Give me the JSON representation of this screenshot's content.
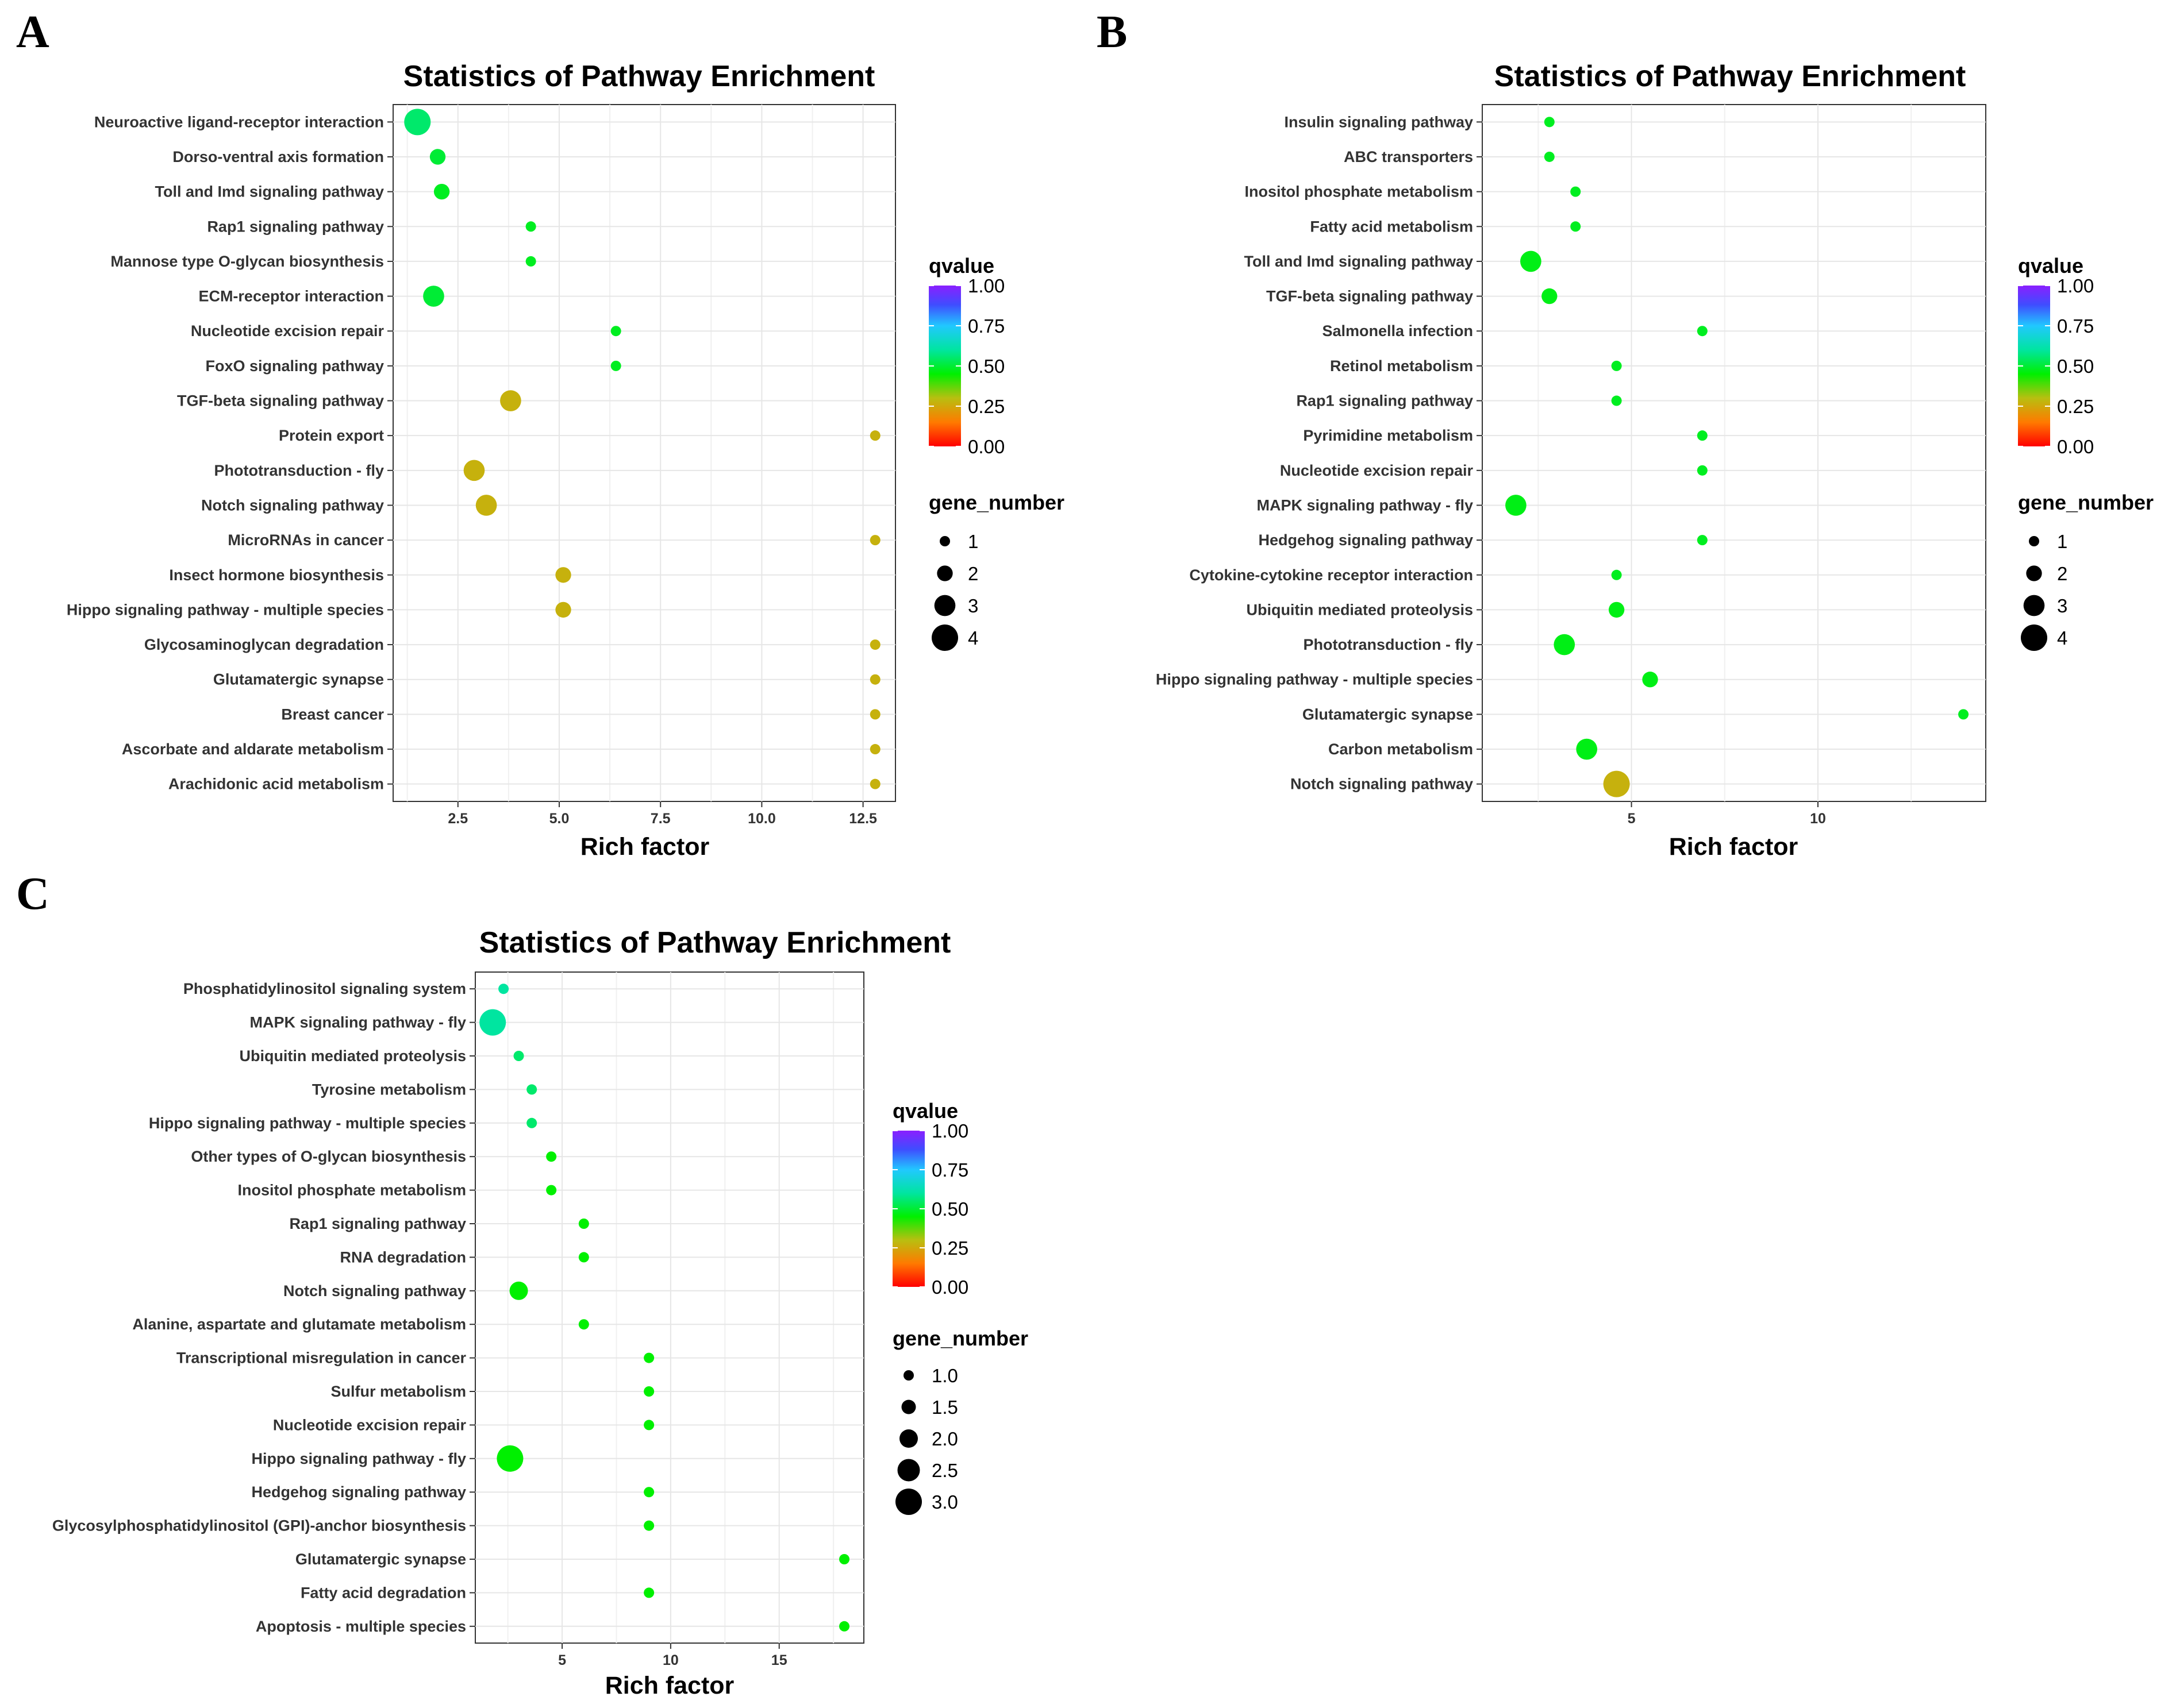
{
  "chart_data": [
    {
      "panel": "A",
      "type": "scatter",
      "title": "Statistics of Pathway Enrichment",
      "xlabel": "Rich factor",
      "ylabel": "",
      "xlim": [
        0.9,
        13.3
      ],
      "xticks": [
        2.5,
        5.0,
        7.5,
        10.0,
        12.5
      ],
      "xtick_labels": [
        "2.5",
        "5.0",
        "7.5",
        "10.0",
        "12.5"
      ],
      "grid": true,
      "color_legend": {
        "title": "qvalue",
        "labels": [
          "1.00",
          "0.75",
          "0.50",
          "0.25",
          "0.00"
        ]
      },
      "size_legend": {
        "title": "gene_number",
        "values": [
          1,
          2,
          3,
          4
        ],
        "labels": [
          "1",
          "2",
          "3",
          "4"
        ]
      },
      "points": [
        {
          "pathway": "Neuroactive ligand-receptor interaction",
          "rich_factor": 1.5,
          "gene_number": 4,
          "qvalue": 0.55
        },
        {
          "pathway": "Dorso-ventral axis formation",
          "rich_factor": 2.0,
          "gene_number": 2,
          "qvalue": 0.5
        },
        {
          "pathway": "Toll and Imd signaling pathway",
          "rich_factor": 2.1,
          "gene_number": 2,
          "qvalue": 0.48
        },
        {
          "pathway": "Rap1 signaling pathway",
          "rich_factor": 4.3,
          "gene_number": 1,
          "qvalue": 0.48
        },
        {
          "pathway": "Mannose type O-glycan biosynthesis",
          "rich_factor": 4.3,
          "gene_number": 1,
          "qvalue": 0.48
        },
        {
          "pathway": "ECM-receptor interaction",
          "rich_factor": 1.9,
          "gene_number": 3,
          "qvalue": 0.5
        },
        {
          "pathway": "Nucleotide excision repair",
          "rich_factor": 6.4,
          "gene_number": 1,
          "qvalue": 0.48
        },
        {
          "pathway": "FoxO signaling pathway",
          "rich_factor": 6.4,
          "gene_number": 1,
          "qvalue": 0.48
        },
        {
          "pathway": "TGF-beta signaling pathway",
          "rich_factor": 3.8,
          "gene_number": 3,
          "qvalue": 0.27
        },
        {
          "pathway": "Protein export",
          "rich_factor": 12.8,
          "gene_number": 1,
          "qvalue": 0.27
        },
        {
          "pathway": "Phototransduction - fly",
          "rich_factor": 2.9,
          "gene_number": 3,
          "qvalue": 0.27
        },
        {
          "pathway": "Notch signaling pathway",
          "rich_factor": 3.2,
          "gene_number": 3,
          "qvalue": 0.27
        },
        {
          "pathway": "MicroRNAs in cancer",
          "rich_factor": 12.8,
          "gene_number": 1,
          "qvalue": 0.27
        },
        {
          "pathway": "Insect hormone biosynthesis",
          "rich_factor": 5.1,
          "gene_number": 2,
          "qvalue": 0.27
        },
        {
          "pathway": "Hippo signaling pathway - multiple species",
          "rich_factor": 5.1,
          "gene_number": 2,
          "qvalue": 0.27
        },
        {
          "pathway": "Glycosaminoglycan degradation",
          "rich_factor": 12.8,
          "gene_number": 1,
          "qvalue": 0.27
        },
        {
          "pathway": "Glutamatergic synapse",
          "rich_factor": 12.8,
          "gene_number": 1,
          "qvalue": 0.27
        },
        {
          "pathway": "Breast cancer",
          "rich_factor": 12.8,
          "gene_number": 1,
          "qvalue": 0.27
        },
        {
          "pathway": "Ascorbate and aldarate metabolism",
          "rich_factor": 12.8,
          "gene_number": 1,
          "qvalue": 0.27
        },
        {
          "pathway": "Arachidonic acid metabolism",
          "rich_factor": 12.8,
          "gene_number": 1,
          "qvalue": 0.27
        }
      ]
    },
    {
      "panel": "B",
      "type": "scatter",
      "title": "Statistics of Pathway Enrichment",
      "xlabel": "Rich factor",
      "ylabel": "",
      "xlim": [
        1.0,
        14.5
      ],
      "xticks": [
        5,
        10
      ],
      "xtick_labels": [
        "5",
        "10"
      ],
      "grid": true,
      "color_legend": {
        "title": "qvalue",
        "labels": [
          "1.00",
          "0.75",
          "0.50",
          "0.25",
          "0.00"
        ]
      },
      "size_legend": {
        "title": "gene_number",
        "values": [
          1,
          2,
          3,
          4
        ],
        "labels": [
          "1",
          "2",
          "3",
          "4"
        ]
      },
      "points": [
        {
          "pathway": "Insulin signaling pathway",
          "rich_factor": 2.8,
          "gene_number": 1,
          "qvalue": 0.48
        },
        {
          "pathway": "ABC transporters",
          "rich_factor": 2.8,
          "gene_number": 1,
          "qvalue": 0.48
        },
        {
          "pathway": "Inositol phosphate metabolism",
          "rich_factor": 3.5,
          "gene_number": 1,
          "qvalue": 0.48
        },
        {
          "pathway": "Fatty acid metabolism",
          "rich_factor": 3.5,
          "gene_number": 1,
          "qvalue": 0.48
        },
        {
          "pathway": "Toll and Imd signaling pathway",
          "rich_factor": 2.3,
          "gene_number": 3,
          "qvalue": 0.47
        },
        {
          "pathway": "TGF-beta signaling pathway",
          "rich_factor": 2.8,
          "gene_number": 2,
          "qvalue": 0.47
        },
        {
          "pathway": "Salmonella infection",
          "rich_factor": 6.9,
          "gene_number": 1,
          "qvalue": 0.48
        },
        {
          "pathway": "Retinol metabolism",
          "rich_factor": 4.6,
          "gene_number": 1,
          "qvalue": 0.48
        },
        {
          "pathway": "Rap1 signaling pathway",
          "rich_factor": 4.6,
          "gene_number": 1,
          "qvalue": 0.48
        },
        {
          "pathway": "Pyrimidine metabolism",
          "rich_factor": 6.9,
          "gene_number": 1,
          "qvalue": 0.48
        },
        {
          "pathway": "Nucleotide excision repair",
          "rich_factor": 6.9,
          "gene_number": 1,
          "qvalue": 0.48
        },
        {
          "pathway": "MAPK signaling pathway - fly",
          "rich_factor": 1.9,
          "gene_number": 3,
          "qvalue": 0.47
        },
        {
          "pathway": "Hedgehog signaling pathway",
          "rich_factor": 6.9,
          "gene_number": 1,
          "qvalue": 0.48
        },
        {
          "pathway": "Cytokine-cytokine receptor interaction",
          "rich_factor": 4.6,
          "gene_number": 1,
          "qvalue": 0.48
        },
        {
          "pathway": "Ubiquitin mediated proteolysis",
          "rich_factor": 4.6,
          "gene_number": 2,
          "qvalue": 0.47
        },
        {
          "pathway": "Phototransduction - fly",
          "rich_factor": 3.2,
          "gene_number": 3,
          "qvalue": 0.47
        },
        {
          "pathway": "Hippo signaling pathway - multiple species",
          "rich_factor": 5.5,
          "gene_number": 2,
          "qvalue": 0.47
        },
        {
          "pathway": "Glutamatergic synapse",
          "rich_factor": 13.9,
          "gene_number": 1,
          "qvalue": 0.48
        },
        {
          "pathway": "Carbon metabolism",
          "rich_factor": 3.8,
          "gene_number": 3,
          "qvalue": 0.47
        },
        {
          "pathway": "Notch signaling pathway",
          "rich_factor": 4.6,
          "gene_number": 4,
          "qvalue": 0.27
        }
      ]
    },
    {
      "panel": "C",
      "type": "scatter",
      "title": "Statistics of Pathway Enrichment",
      "xlabel": "Rich factor",
      "ylabel": "",
      "xlim": [
        1.0,
        18.9
      ],
      "xticks": [
        5,
        10,
        15
      ],
      "xtick_labels": [
        "5",
        "10",
        "15"
      ],
      "grid": true,
      "color_legend": {
        "title": "qvalue",
        "labels": [
          "1.00",
          "0.75",
          "0.50",
          "0.25",
          "0.00"
        ]
      },
      "size_legend": {
        "title": "gene_number",
        "values": [
          1.0,
          1.5,
          2.0,
          2.5,
          3.0
        ],
        "labels": [
          "1.0",
          "1.5",
          "2.0",
          "2.5",
          "3.0"
        ]
      },
      "points": [
        {
          "pathway": "Phosphatidylinositol signaling system",
          "rich_factor": 2.3,
          "gene_number": 1,
          "qvalue": 0.6
        },
        {
          "pathway": "MAPK signaling pathway - fly",
          "rich_factor": 1.8,
          "gene_number": 3,
          "qvalue": 0.6
        },
        {
          "pathway": "Ubiquitin mediated proteolysis",
          "rich_factor": 3.0,
          "gene_number": 1,
          "qvalue": 0.55
        },
        {
          "pathway": "Tyrosine metabolism",
          "rich_factor": 3.6,
          "gene_number": 1,
          "qvalue": 0.55
        },
        {
          "pathway": "Hippo signaling pathway - multiple species",
          "rich_factor": 3.6,
          "gene_number": 1,
          "qvalue": 0.55
        },
        {
          "pathway": "Other types of O-glycan biosynthesis",
          "rich_factor": 4.5,
          "gene_number": 1,
          "qvalue": 0.45
        },
        {
          "pathway": "Inositol phosphate metabolism",
          "rich_factor": 4.5,
          "gene_number": 1,
          "qvalue": 0.45
        },
        {
          "pathway": "Rap1 signaling pathway",
          "rich_factor": 6.0,
          "gene_number": 1,
          "qvalue": 0.45
        },
        {
          "pathway": "RNA degradation",
          "rich_factor": 6.0,
          "gene_number": 1,
          "qvalue": 0.45
        },
        {
          "pathway": "Notch signaling pathway",
          "rich_factor": 3.0,
          "gene_number": 2,
          "qvalue": 0.45
        },
        {
          "pathway": "Alanine, aspartate and glutamate metabolism",
          "rich_factor": 6.0,
          "gene_number": 1,
          "qvalue": 0.45
        },
        {
          "pathway": "Transcriptional misregulation in cancer",
          "rich_factor": 9.0,
          "gene_number": 1,
          "qvalue": 0.45
        },
        {
          "pathway": "Sulfur metabolism",
          "rich_factor": 9.0,
          "gene_number": 1,
          "qvalue": 0.45
        },
        {
          "pathway": "Nucleotide excision repair",
          "rich_factor": 9.0,
          "gene_number": 1,
          "qvalue": 0.45
        },
        {
          "pathway": "Hippo signaling pathway - fly",
          "rich_factor": 2.6,
          "gene_number": 3,
          "qvalue": 0.45
        },
        {
          "pathway": "Hedgehog signaling pathway",
          "rich_factor": 9.0,
          "gene_number": 1,
          "qvalue": 0.45
        },
        {
          "pathway": "Glycosylphosphatidylinositol (GPI)-anchor biosynthesis",
          "rich_factor": 9.0,
          "gene_number": 1,
          "qvalue": 0.45
        },
        {
          "pathway": "Glutamatergic synapse",
          "rich_factor": 18.0,
          "gene_number": 1,
          "qvalue": 0.45
        },
        {
          "pathway": "Fatty acid degradation",
          "rich_factor": 9.0,
          "gene_number": 1,
          "qvalue": 0.45
        },
        {
          "pathway": "Apoptosis - multiple species",
          "rich_factor": 18.0,
          "gene_number": 1,
          "qvalue": 0.45
        }
      ]
    }
  ]
}
